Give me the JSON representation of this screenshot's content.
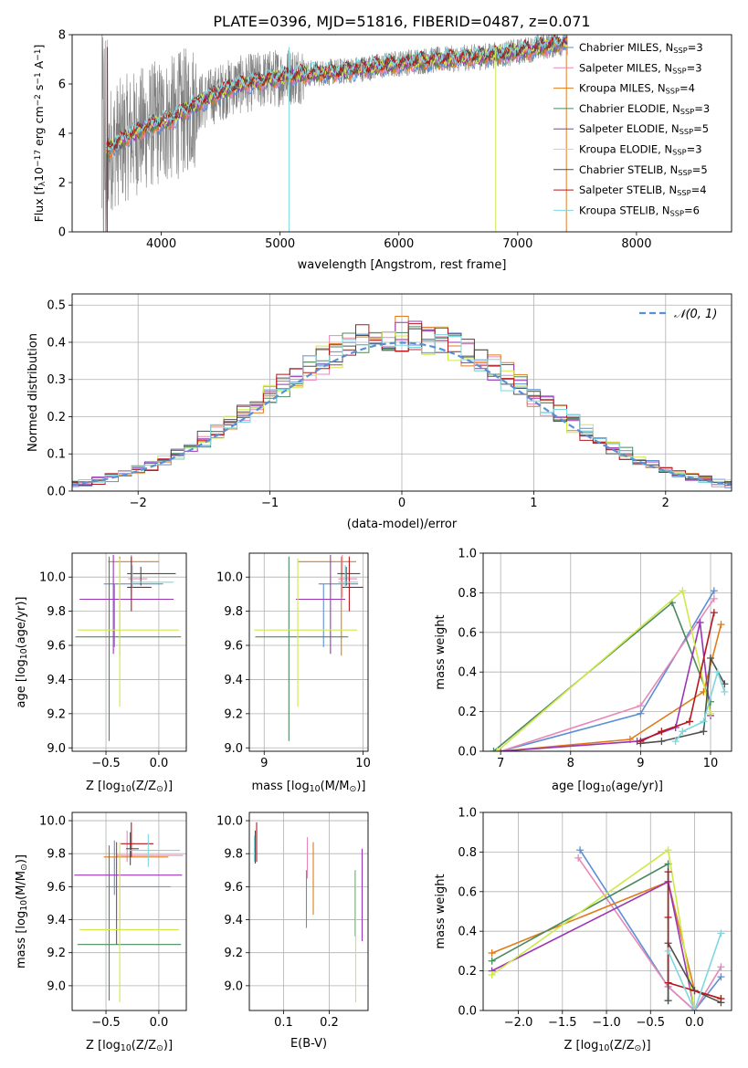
{
  "figure": {
    "title": "PLATE=0396, MJD=51816, FIBERID=0487, z=0.071"
  },
  "colors": {
    "Chabrier MILES": "#5b8fd6",
    "Salpeter MILES": "#e987b8",
    "Kroupa MILES": "#e07b1a",
    "Chabrier ELODIE": "#4a8a5e",
    "Salpeter ELODIE": "#9a35b5",
    "Kroupa ELODIE": "#cfe84a",
    "Chabrier STELIB": "#505050",
    "Salpeter STELIB": "#b5171c",
    "Kroupa STELIB": "#7dd8de",
    "data": "#808080",
    "normal": "#5b8fd6"
  },
  "chart_data": [
    {
      "id": "spectrum",
      "type": "line",
      "xlabel": "wavelength [Angstrom, rest frame]",
      "ylabel": "Flux [f$_\\lambda$10$^{-17}$ erg cm$^{-2}$ s$^{-1}$ A$^{-1}$]",
      "ylabel_parts": [
        "Flux [f",
        "λ",
        "10",
        "−17",
        " erg cm",
        "−2",
        " s",
        "−1",
        " A",
        "−1",
        "]"
      ],
      "xlim": [
        3250,
        8800
      ],
      "ylim": [
        0,
        8
      ],
      "xticks": [
        4000,
        5000,
        6000,
        7000,
        8000
      ],
      "yticks": [
        0,
        2,
        4,
        6,
        8
      ],
      "grid": false,
      "legend_position": "top-right",
      "legend": [
        {
          "model": "Chabrier MILES",
          "n": "3"
        },
        {
          "model": "Salpeter MILES",
          "n": "3"
        },
        {
          "model": "Kroupa MILES",
          "n": "4"
        },
        {
          "model": "Chabrier ELODIE",
          "n": "3"
        },
        {
          "model": "Salpeter ELODIE",
          "n": "5"
        },
        {
          "model": "Kroupa ELODIE",
          "n": "3"
        },
        {
          "model": "Chabrier STELIB",
          "n": "5"
        },
        {
          "model": "Salpeter STELIB",
          "n": "4"
        },
        {
          "model": "Kroupa STELIB",
          "n": "6"
        }
      ],
      "legend_sub": "SSP",
      "continuum": {
        "x": [
          3540,
          3700,
          3900,
          4100,
          4300,
          4600,
          4900,
          5200,
          5500,
          5800,
          6100,
          6400,
          6700,
          7000,
          7200,
          7400
        ],
        "y": [
          3.3,
          3.8,
          4.3,
          4.6,
          5.2,
          5.9,
          6.2,
          6.4,
          6.5,
          6.7,
          6.9,
          7.0,
          7.1,
          7.3,
          7.5,
          7.7
        ]
      },
      "data_range": [
        3500,
        7420
      ]
    },
    {
      "id": "residuals",
      "type": "line",
      "xlabel": "(data-model)/error",
      "ylabel": "Normed distribution",
      "xlim": [
        -2.5,
        2.5
      ],
      "ylim": [
        0,
        0.53
      ],
      "xticks": [
        -2,
        -1,
        0,
        1,
        2
      ],
      "xtick_labels": [
        "−2",
        "−1",
        "0",
        "1",
        "2"
      ],
      "yticks": [
        0.0,
        0.1,
        0.2,
        0.3,
        0.4,
        0.5
      ],
      "ytick_labels": [
        "0.0",
        "0.1",
        "0.2",
        "0.3",
        "0.4",
        "0.5"
      ],
      "grid": true,
      "legend_position": "top-right",
      "normal_label": "𝒩(0, 1)",
      "bin_width": 0.1
    },
    {
      "id": "age-vs-Z",
      "type": "scatter",
      "xlabel": "Z [log$_{10}$(Z/Z$_\\odot$)]",
      "xlabel_parts": [
        "Z [log",
        "10",
        "(Z/Z",
        "⊙",
        ")]"
      ],
      "ylabel_parts": [
        "age  [log",
        "10",
        "(age/yr)]"
      ],
      "xlim": [
        -0.82,
        0.26
      ],
      "ylim": [
        8.98,
        10.14
      ],
      "xticks": [
        -0.5,
        0.0
      ],
      "xtick_labels": [
        "−0.5",
        "0.0"
      ],
      "yticks": [
        9.0,
        9.2,
        9.4,
        9.6,
        9.8,
        10.0
      ],
      "ytick_labels": [
        "9.0",
        "9.2",
        "9.4",
        "9.6",
        "9.8",
        "10.0"
      ],
      "grid": true,
      "points": [
        {
          "model": "Chabrier MILES",
          "x": -0.42,
          "xerr": [
            0.1,
            0.46
          ],
          "y": 9.96,
          "yerr": [
            0.37,
            0.0
          ]
        },
        {
          "model": "Salpeter MILES",
          "x": -0.26,
          "xerr": [
            0.03,
            0.15
          ],
          "y": 9.99,
          "yerr": [
            0.11,
            0.14
          ]
        },
        {
          "model": "Kroupa MILES",
          "x": -0.37,
          "xerr": [
            0.11,
            0.37
          ],
          "y": 10.09,
          "yerr": [
            0.55,
            0.03
          ]
        },
        {
          "model": "Chabrier ELODIE",
          "x": -0.47,
          "xerr": [
            0.32,
            0.68
          ],
          "y": 9.65,
          "yerr": [
            0.61,
            0.47
          ]
        },
        {
          "model": "Salpeter ELODIE",
          "x": -0.43,
          "xerr": [
            0.32,
            0.57
          ],
          "y": 9.87,
          "yerr": [
            0.32,
            0.26
          ]
        },
        {
          "model": "Kroupa ELODIE",
          "x": -0.37,
          "xerr": [
            0.4,
            0.56
          ],
          "y": 9.69,
          "yerr": [
            0.45,
            0.42
          ]
        },
        {
          "model": "Chabrier STELIB",
          "x": -0.17,
          "xerr": [
            0.13,
            0.33
          ],
          "y": 10.02,
          "yerr": [
            0.07,
            0.04
          ]
        },
        {
          "model": "Salpeter STELIB",
          "x": -0.26,
          "xerr": [
            0.04,
            0.19
          ],
          "y": 9.94,
          "yerr": [
            0.14,
            0.18
          ]
        },
        {
          "model": "Kroupa STELIB",
          "x": -0.25,
          "xerr": [
            0.01,
            0.39
          ],
          "y": 9.97,
          "yerr": [
            0.03,
            0.1
          ]
        }
      ]
    },
    {
      "id": "age-vs-mass",
      "type": "scatter",
      "xlabel_parts": [
        "mass [log",
        "10",
        "(M/M",
        "⊙",
        ")]"
      ],
      "xlim": [
        8.85,
        10.05
      ],
      "ylim": [
        8.98,
        10.14
      ],
      "xticks": [
        9,
        10
      ],
      "xtick_labels": [
        "9",
        "10"
      ],
      "yticks": [
        9.0,
        9.2,
        9.4,
        9.6,
        9.8,
        10.0
      ],
      "ytick_labels": [
        "9.0",
        "9.2",
        "9.4",
        "9.6",
        "9.8",
        "10.0"
      ],
      "grid": true,
      "points": [
        {
          "model": "Chabrier MILES",
          "x": 9.6,
          "xerr": [
            0.05,
            0.35
          ],
          "y": 9.96,
          "yerr": [
            0.37,
            0.0
          ]
        },
        {
          "model": "Salpeter MILES",
          "x": 9.79,
          "xerr": [
            0.04,
            0.15
          ],
          "y": 9.99,
          "yerr": [
            0.11,
            0.14
          ]
        },
        {
          "model": "Kroupa MILES",
          "x": 9.78,
          "xerr": [
            0.44,
            0.15
          ],
          "y": 10.09,
          "yerr": [
            0.55,
            0.03
          ]
        },
        {
          "model": "Chabrier ELODIE",
          "x": 9.25,
          "xerr": [
            0.34,
            0.6
          ],
          "y": 9.65,
          "yerr": [
            0.61,
            0.47
          ]
        },
        {
          "model": "Salpeter ELODIE",
          "x": 9.67,
          "xerr": [
            0.35,
            0.15
          ],
          "y": 9.87,
          "yerr": [
            0.32,
            0.26
          ]
        },
        {
          "model": "Kroupa ELODIE",
          "x": 9.34,
          "xerr": [
            0.44,
            0.6
          ],
          "y": 9.69,
          "yerr": [
            0.45,
            0.42
          ]
        },
        {
          "model": "Chabrier STELIB",
          "x": 9.83,
          "xerr": [
            0.09,
            0.14
          ],
          "y": 10.02,
          "yerr": [
            0.07,
            0.04
          ]
        },
        {
          "model": "Salpeter STELIB",
          "x": 9.86,
          "xerr": [
            0.07,
            0.14
          ],
          "y": 9.94,
          "yerr": [
            0.14,
            0.18
          ]
        },
        {
          "model": "Kroupa STELIB",
          "x": 9.82,
          "xerr": [
            0.07,
            0.13
          ],
          "y": 9.97,
          "yerr": [
            0.03,
            0.1
          ]
        }
      ]
    },
    {
      "id": "weight-vs-age",
      "type": "line",
      "xlabel_parts": [
        "age  [log",
        "10",
        "(age/yr)]"
      ],
      "ylabel": "mass weight",
      "xlim": [
        6.75,
        10.3
      ],
      "ylim": [
        0,
        1
      ],
      "xticks": [
        7,
        8,
        9,
        10
      ],
      "xtick_labels": [
        "7",
        "8",
        "9",
        "10"
      ],
      "yticks": [
        0.0,
        0.2,
        0.4,
        0.6,
        0.8,
        1.0
      ],
      "ytick_labels": [
        "0.0",
        "0.2",
        "0.4",
        "0.6",
        "0.8",
        "1.0"
      ],
      "grid": true,
      "series": [
        {
          "model": "Chabrier MILES",
          "x": [
            7.0,
            9.0,
            10.05
          ],
          "y": [
            0.0,
            0.19,
            0.81
          ]
        },
        {
          "model": "Salpeter MILES",
          "x": [
            7.0,
            9.0,
            10.05
          ],
          "y": [
            0.0,
            0.23,
            0.77
          ]
        },
        {
          "model": "Kroupa MILES",
          "x": [
            7.0,
            8.85,
            9.9,
            10.15
          ],
          "y": [
            0.0,
            0.06,
            0.3,
            0.64
          ]
        },
        {
          "model": "Chabrier ELODIE",
          "x": [
            6.9,
            9.45,
            10.0
          ],
          "y": [
            0.0,
            0.75,
            0.25
          ]
        },
        {
          "model": "Salpeter ELODIE",
          "x": [
            7.0,
            8.95,
            9.5,
            9.85,
            10.0
          ],
          "y": [
            0.0,
            0.05,
            0.12,
            0.65,
            0.18
          ]
        },
        {
          "model": "Kroupa ELODIE",
          "x": [
            6.95,
            9.6,
            10.0
          ],
          "y": [
            0.0,
            0.81,
            0.19
          ]
        },
        {
          "model": "Chabrier STELIB",
          "x": [
            9.0,
            9.3,
            9.9,
            10.0,
            10.2
          ],
          "y": [
            0.04,
            0.05,
            0.1,
            0.47,
            0.34
          ]
        },
        {
          "model": "Salpeter STELIB",
          "x": [
            9.0,
            9.3,
            9.7,
            10.05
          ],
          "y": [
            0.05,
            0.1,
            0.15,
            0.7
          ]
        },
        {
          "model": "Kroupa STELIB",
          "x": [
            9.5,
            9.6,
            9.9,
            10.1,
            10.2
          ],
          "y": [
            0.05,
            0.1,
            0.15,
            0.4,
            0.3
          ]
        }
      ]
    },
    {
      "id": "mass-vs-Z",
      "type": "scatter",
      "xlabel_parts": [
        "Z [log",
        "10",
        "(Z/Z",
        "⊙",
        ")]"
      ],
      "ylabel_parts": [
        "mass [log",
        "10",
        "(M/M",
        "⊙",
        ")]"
      ],
      "xlim": [
        -0.82,
        0.26
      ],
      "ylim": [
        8.85,
        10.05
      ],
      "xticks": [
        -0.5,
        0.0
      ],
      "xtick_labels": [
        "−0.5",
        "0.0"
      ],
      "yticks": [
        9.0,
        9.2,
        9.4,
        9.6,
        9.8,
        10.0
      ],
      "ytick_labels": [
        "9.0",
        "9.2",
        "9.4",
        "9.6",
        "9.8",
        "10.0"
      ],
      "grid": true,
      "points": [
        {
          "model": "Chabrier MILES",
          "x": -0.42,
          "xerr": [
            0.08,
            0.53
          ],
          "y": 9.6,
          "yerr": [
            0.05,
            0.28
          ]
        },
        {
          "model": "Salpeter MILES",
          "x": -0.3,
          "xerr": [
            0.1,
            0.53
          ],
          "y": 9.79,
          "yerr": [
            0.04,
            0.15
          ]
        },
        {
          "model": "Kroupa MILES",
          "x": -0.37,
          "xerr": [
            0.15,
            0.46
          ],
          "y": 9.78,
          "yerr": [
            0.44,
            0.03
          ]
        },
        {
          "model": "Chabrier ELODIE",
          "x": -0.47,
          "xerr": [
            0.3,
            0.68
          ],
          "y": 9.25,
          "yerr": [
            0.34,
            0.6
          ]
        },
        {
          "model": "Salpeter ELODIE",
          "x": -0.4,
          "xerr": [
            0.4,
            0.62
          ],
          "y": 9.67,
          "yerr": [
            0.42,
            0.2
          ]
        },
        {
          "model": "Kroupa ELODIE",
          "x": -0.37,
          "xerr": [
            0.38,
            0.56
          ],
          "y": 9.34,
          "yerr": [
            0.44,
            0.53
          ]
        },
        {
          "model": "Chabrier STELIB",
          "x": -0.27,
          "xerr": [
            0.04,
            0.08
          ],
          "y": 9.83,
          "yerr": [
            0.1,
            0.1
          ]
        },
        {
          "model": "Salpeter STELIB",
          "x": -0.26,
          "xerr": [
            0.1,
            0.21
          ],
          "y": 9.86,
          "yerr": [
            0.08,
            0.13
          ]
        },
        {
          "model": "Kroupa STELIB",
          "x": -0.1,
          "xerr": [
            0.18,
            0.3
          ],
          "y": 9.82,
          "yerr": [
            0.1,
            0.1
          ]
        }
      ]
    },
    {
      "id": "mass-vs-ebv",
      "type": "scatter",
      "xlabel": "E(B-V)",
      "xlim": [
        0.025,
        0.285
      ],
      "ylim": [
        8.85,
        10.05
      ],
      "xticks": [
        0.1,
        0.2
      ],
      "xtick_labels": [
        "0.1",
        "0.2"
      ],
      "yticks": [
        9.0,
        9.2,
        9.4,
        9.6,
        9.8,
        10.0
      ],
      "ytick_labels": [
        "9.0",
        "9.2",
        "9.4",
        "9.6",
        "9.8",
        "10.0"
      ],
      "grid": true,
      "points": [
        {
          "model": "Chabrier MILES",
          "x": 0.15,
          "y": 9.6,
          "yerr": [
            0.25,
            0.1
          ]
        },
        {
          "model": "Salpeter MILES",
          "x": 0.152,
          "y": 9.75,
          "yerr": [
            0.1,
            0.15
          ]
        },
        {
          "model": "Kroupa MILES",
          "x": 0.165,
          "y": 9.65,
          "yerr": [
            0.22,
            0.22
          ]
        },
        {
          "model": "Chabrier ELODIE",
          "x": 0.257,
          "y": 9.6,
          "yerr": [
            0.3,
            0.1
          ]
        },
        {
          "model": "Salpeter ELODIE",
          "x": 0.272,
          "y": 9.55,
          "yerr": [
            0.28,
            0.28
          ]
        },
        {
          "model": "Kroupa ELODIE",
          "x": 0.258,
          "y": 9.4,
          "yerr": [
            0.5,
            0.3
          ]
        },
        {
          "model": "Chabrier STELIB",
          "x": 0.038,
          "y": 9.84,
          "yerr": [
            0.1,
            0.1
          ]
        },
        {
          "model": "Salpeter STELIB",
          "x": 0.041,
          "y": 9.87,
          "yerr": [
            0.12,
            0.12
          ]
        },
        {
          "model": "Kroupa STELIB",
          "x": 0.036,
          "y": 9.83,
          "yerr": [
            0.08,
            0.08
          ]
        }
      ]
    },
    {
      "id": "weight-vs-Z",
      "type": "line",
      "xlabel_parts": [
        "Z [log",
        "10",
        "(Z/Z",
        "⊙",
        ")]"
      ],
      "ylabel": "mass weight",
      "xlim": [
        -2.4,
        0.42
      ],
      "ylim": [
        0,
        1
      ],
      "xticks": [
        -2.0,
        -1.5,
        -1.0,
        -0.5,
        0.0
      ],
      "xtick_labels": [
        "−2.0",
        "−1.5",
        "−1.0",
        "−0.5",
        "0.0"
      ],
      "yticks": [
        0.0,
        0.2,
        0.4,
        0.6,
        0.8,
        1.0
      ],
      "ytick_labels": [
        "0.0",
        "0.2",
        "0.4",
        "0.6",
        "0.8",
        "1.0"
      ],
      "grid": true,
      "series": [
        {
          "model": "Chabrier MILES",
          "x": [
            -1.3,
            -0.3,
            0.0,
            0.3
          ],
          "y": [
            0.81,
            0.12,
            0.0,
            0.17
          ]
        },
        {
          "model": "Salpeter MILES",
          "x": [
            -1.32,
            -0.3,
            0.0,
            0.3
          ],
          "y": [
            0.77,
            0.12,
            0.0,
            0.22
          ]
        },
        {
          "model": "Kroupa MILES",
          "x": [
            -2.3,
            -0.3,
            0.0,
            0.3
          ],
          "y": [
            0.29,
            0.65,
            0.1,
            0.06
          ]
        },
        {
          "model": "Chabrier ELODIE",
          "x": [
            -2.3,
            -0.3,
            -0.3
          ],
          "y": [
            0.25,
            0.74,
            0.05
          ]
        },
        {
          "model": "Salpeter ELODIE",
          "x": [
            -2.3,
            -0.3,
            0.0
          ],
          "y": [
            0.2,
            0.65,
            0.0
          ]
        },
        {
          "model": "Kroupa ELODIE",
          "x": [
            -2.3,
            -0.3,
            0.0
          ],
          "y": [
            0.18,
            0.81,
            0.0
          ]
        },
        {
          "model": "Chabrier STELIB",
          "x": [
            -0.3,
            -0.3,
            0.0,
            0.3
          ],
          "y": [
            0.05,
            0.34,
            0.1,
            0.04
          ]
        },
        {
          "model": "Salpeter STELIB",
          "x": [
            -0.3,
            -0.3,
            -0.3,
            0.3
          ],
          "y": [
            0.7,
            0.47,
            0.14,
            0.06
          ]
        },
        {
          "model": "Kroupa STELIB",
          "x": [
            -0.3,
            0.0,
            0.3
          ],
          "y": [
            0.3,
            0.0,
            0.39
          ]
        }
      ]
    }
  ]
}
